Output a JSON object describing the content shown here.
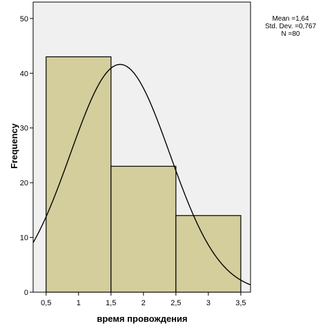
{
  "chart_data": {
    "type": "bar",
    "title": "",
    "xlabel": "время провождения",
    "ylabel": "Frequency",
    "bins": [
      {
        "from": 0.5,
        "to": 1.5,
        "value": 43
      },
      {
        "from": 1.5,
        "to": 2.5,
        "value": 23
      },
      {
        "from": 2.5,
        "to": 3.5,
        "value": 14
      }
    ],
    "xlim": [
      0.3,
      3.65
    ],
    "ylim": [
      0,
      53
    ],
    "xticks": [
      {
        "value": 0.5,
        "label": "0,5"
      },
      {
        "value": 1,
        "label": "1"
      },
      {
        "value": 1.5,
        "label": "1,5"
      },
      {
        "value": 2,
        "label": "2"
      },
      {
        "value": 2.5,
        "label": "2,5"
      },
      {
        "value": 3,
        "label": "3"
      },
      {
        "value": 3.5,
        "label": "3,5"
      }
    ],
    "yticks": [
      {
        "value": 0,
        "label": "0"
      },
      {
        "value": 10,
        "label": "10"
      },
      {
        "value": 20,
        "label": "20"
      },
      {
        "value": 30,
        "label": "30"
      },
      {
        "value": 40,
        "label": "40"
      },
      {
        "value": 50,
        "label": "50"
      }
    ],
    "normal_curve": {
      "mean": 1.64,
      "std": 0.767,
      "n": 80,
      "bin_width": 1
    },
    "stats": [
      "Mean =1,64",
      "Std. Dev. =0,767",
      "N =80"
    ],
    "grid": false,
    "colors": {
      "bar_fill": "#d3ce9b",
      "bar_stroke": "#000000",
      "plot_bg": "#f0f0f0",
      "curve": "#000000"
    }
  }
}
